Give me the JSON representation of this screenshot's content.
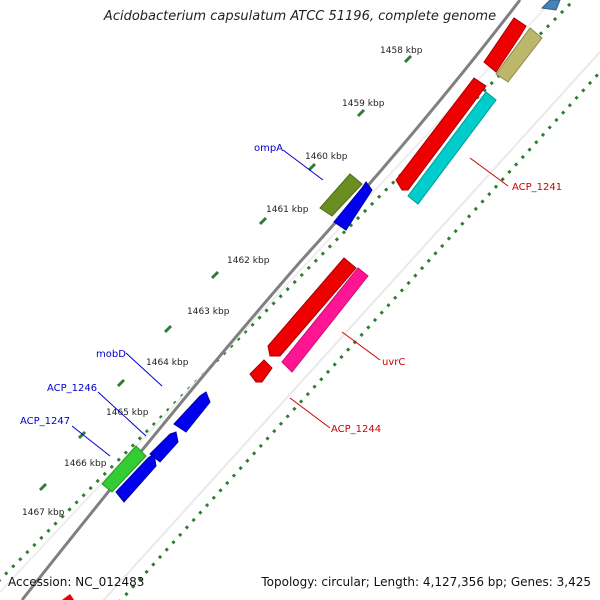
{
  "header": {
    "title": "Acidobacterium capsulatum ATCC 51196, complete genome"
  },
  "footer": {
    "accession": "Accession: NC_012483",
    "summary": "Topology: circular; Length: 4,127,356 bp; Genes: 3,425"
  },
  "scale_labels": [
    "1458 kbp",
    "1459 kbp",
    "1460 kbp",
    "1461 kbp",
    "1462 kbp",
    "1463 kbp",
    "1464 kbp",
    "1465 kbp",
    "1466 kbp",
    "1467 kbp"
  ],
  "gene_labels": {
    "ompA": "ompA",
    "mobD": "mobD",
    "acp1246": "ACP_1246",
    "acp1247": "ACP_1247",
    "acp1241": "ACP_1241",
    "uvrC": "uvrC",
    "acp1244": "ACP_1244"
  },
  "colors": {
    "backbone": "#808080",
    "tick": "#2e7d32",
    "forward_cds": "#0000ee",
    "reverse_cds": "#ee0000",
    "olive": "#6b8e23",
    "khaki": "#bdb76b",
    "cyan": "#00cccc",
    "magenta": "#ff1493",
    "green": "#33cc33",
    "steel": "#4682b4",
    "label_blue": "#0000cc",
    "label_red": "#cc0000"
  }
}
